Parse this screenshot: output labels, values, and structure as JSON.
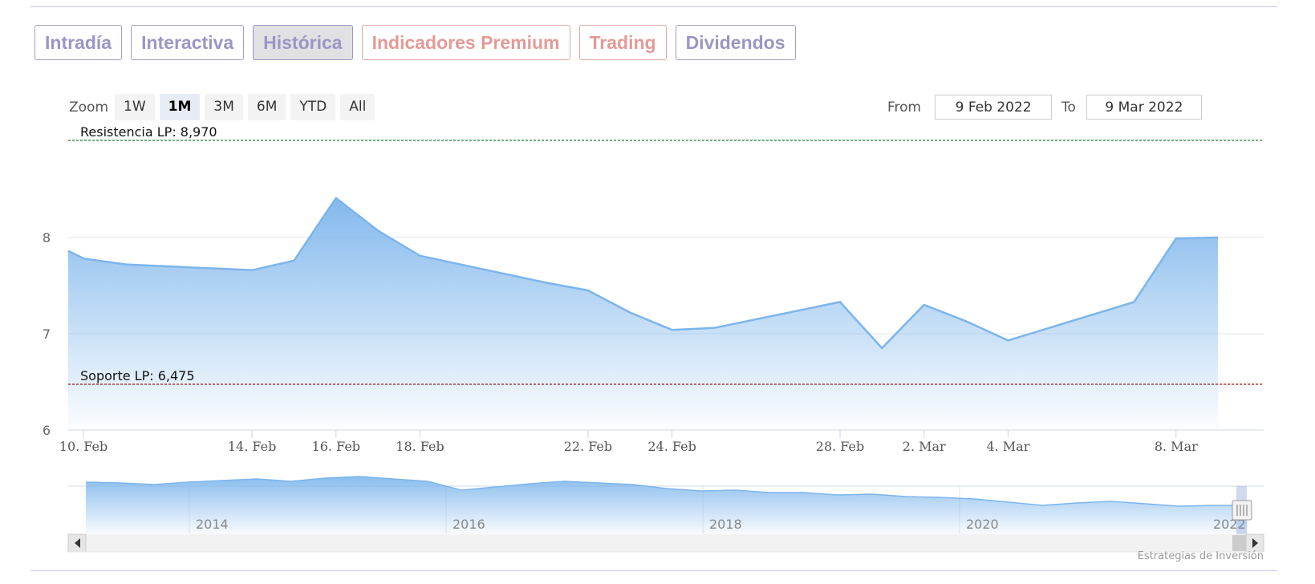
{
  "tabs": [
    {
      "label": "Intradía",
      "style": "normal"
    },
    {
      "label": "Interactiva",
      "style": "normal"
    },
    {
      "label": "Histórica",
      "style": "active"
    },
    {
      "label": "Indicadores Premium",
      "style": "premium"
    },
    {
      "label": "Trading",
      "style": "premium"
    },
    {
      "label": "Dividendos",
      "style": "normal"
    }
  ],
  "zoom": {
    "label": "Zoom",
    "buttons": [
      "1W",
      "1M",
      "3M",
      "6M",
      "YTD",
      "All"
    ],
    "active": "1M"
  },
  "range": {
    "from_label": "From",
    "from_value": "9 Feb 2022",
    "to_label": "To",
    "to_value": "9 Mar 2022"
  },
  "credit": "Estrategias de Inversión",
  "colors": {
    "tab_text": "#9a96c4",
    "premium_text": "#e39a96",
    "series_line": "#7cb5ec",
    "resistance_line": "#1a7a2e",
    "support_line": "#a01818"
  },
  "chart_data": {
    "type": "area",
    "title": "",
    "xlabel": "",
    "ylabel": "",
    "ylim": [
      6,
      8.9
    ],
    "y_ticks": [
      6,
      7,
      8
    ],
    "grid": true,
    "legend": "none",
    "x_ticks": [
      "10. Feb",
      "14. Feb",
      "16. Feb",
      "18. Feb",
      "22. Feb",
      "24. Feb",
      "28. Feb",
      "2. Mar",
      "4. Mar",
      "8. Mar"
    ],
    "series": [
      {
        "x": [
          "2022-02-09",
          "2022-02-10",
          "2022-02-11",
          "2022-02-14",
          "2022-02-15",
          "2022-02-16",
          "2022-02-17",
          "2022-02-18",
          "2022-02-21",
          "2022-02-22",
          "2022-02-23",
          "2022-02-24",
          "2022-02-25",
          "2022-02-28",
          "2022-03-01",
          "2022-03-02",
          "2022-03-03",
          "2022-03-04",
          "2022-03-07",
          "2022-03-08",
          "2022-03-09"
        ],
        "y": [
          7.86,
          7.78,
          7.72,
          7.66,
          7.76,
          8.41,
          8.07,
          7.81,
          7.53,
          7.45,
          7.22,
          7.04,
          7.06,
          7.33,
          6.85,
          7.3,
          7.13,
          6.93,
          7.33,
          7.99,
          8.0
        ]
      }
    ],
    "plot_lines": [
      {
        "label": "Resistencia LP: 8,970",
        "value": 8.97
      },
      {
        "label": "Soporte LP: 6,475",
        "value": 6.475
      }
    ],
    "navigator": {
      "year_labels": [
        "2014",
        "2016",
        "2018",
        "2020",
        "2022"
      ],
      "values": [
        8.9,
        8.8,
        8.6,
        8.9,
        9.1,
        9.3,
        9.0,
        9.4,
        9.6,
        9.3,
        9.0,
        7.9,
        8.3,
        8.7,
        9.0,
        8.8,
        8.6,
        8.1,
        7.8,
        7.9,
        7.6,
        7.6,
        7.3,
        7.4,
        7.1,
        7.0,
        6.8,
        6.4,
        6.0,
        6.3,
        6.5,
        6.2,
        5.9,
        6.0,
        6.0
      ]
    }
  }
}
